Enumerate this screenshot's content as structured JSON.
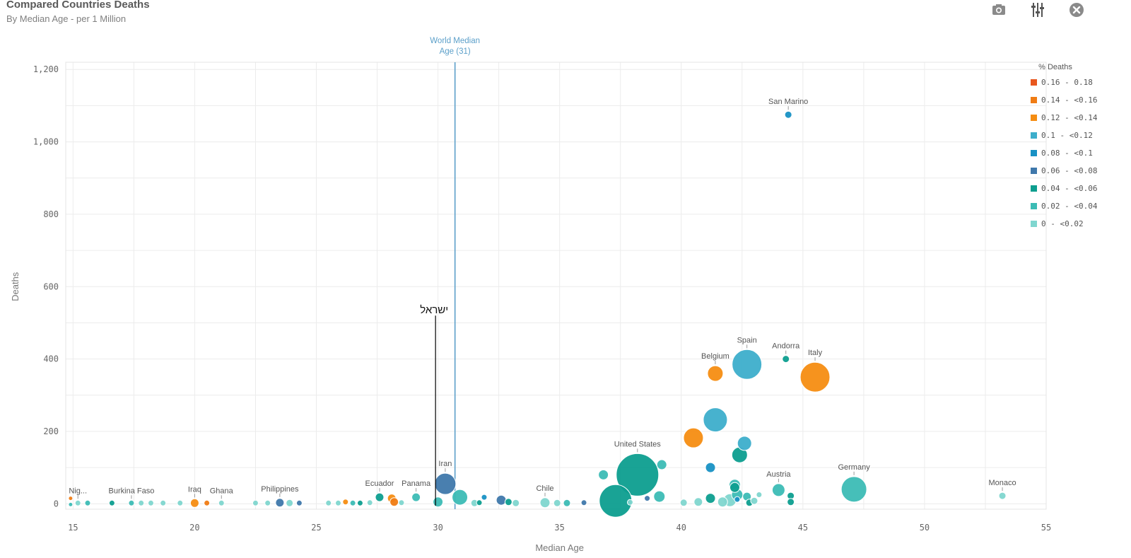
{
  "header": {
    "title": "Compared Countries Deaths",
    "subtitle": "By Median Age - per 1 Million"
  },
  "toolbar": {
    "icons": [
      "camera-icon",
      "sliders-icon",
      "close-icon"
    ]
  },
  "chart_data": {
    "type": "scatter",
    "xlabel": "Median Age",
    "ylabel": "Deaths",
    "xlim": [
      14.7,
      55
    ],
    "ylim": [
      -15,
      1220
    ],
    "xticks": [
      15,
      20,
      25,
      30,
      35,
      40,
      45,
      50,
      55
    ],
    "yticks": [
      {
        "v": 0,
        "label": "0"
      },
      {
        "v": 200,
        "label": "200"
      },
      {
        "v": 400,
        "label": "400"
      },
      {
        "v": 600,
        "label": "600"
      },
      {
        "v": 800,
        "label": "800"
      },
      {
        "v": 1000,
        "label": "1,000"
      },
      {
        "v": 1200,
        "label": "1,200"
      }
    ],
    "grid": true,
    "reference_line": {
      "x": 30.7,
      "label_line1": "World Median",
      "label_line2": "Age (31)",
      "color": "#5b9fc9"
    },
    "annotation": {
      "x": 29.9,
      "y": 520,
      "text": "ישראל"
    },
    "legend": {
      "title": "% Deaths",
      "position": "right",
      "items": [
        {
          "label": "0.16 - 0.18",
          "color": "#e8571e"
        },
        {
          "label": "0.14 - <0.16",
          "color": "#f07c14"
        },
        {
          "label": "0.12 - <0.14",
          "color": "#f58d12"
        },
        {
          "label": "0.1 - <0.12",
          "color": "#3daecb"
        },
        {
          "label": "0.08 - <0.1",
          "color": "#1891c4"
        },
        {
          "label": "0.06 - <0.08",
          "color": "#3f78ab"
        },
        {
          "label": "0.04 - <0.06",
          "color": "#0d9e8f"
        },
        {
          "label": "0.02 - <0.04",
          "color": "#3cbcb5"
        },
        {
          "label": "0 - <0.02",
          "color": "#7fd6cf"
        }
      ]
    },
    "points": [
      {
        "x": 44.4,
        "y": 1075,
        "r": 5,
        "c": 4,
        "label": "San Marino"
      },
      {
        "x": 42.7,
        "y": 385,
        "r": 21,
        "c": 3,
        "label": "Spain"
      },
      {
        "x": 44.3,
        "y": 400,
        "r": 5,
        "c": 6,
        "label": "Andorra"
      },
      {
        "x": 45.5,
        "y": 350,
        "r": 21,
        "c": 2,
        "label": "Italy"
      },
      {
        "x": 41.4,
        "y": 360,
        "r": 11,
        "c": 2,
        "label": "Belgium"
      },
      {
        "x": 41.4,
        "y": 232,
        "r": 17,
        "c": 3,
        "label": ""
      },
      {
        "x": 40.5,
        "y": 182,
        "r": 14,
        "c": 2,
        "label": ""
      },
      {
        "x": 42.6,
        "y": 167,
        "r": 10,
        "c": 3,
        "label": ""
      },
      {
        "x": 42.4,
        "y": 135,
        "r": 11,
        "c": 6,
        "label": ""
      },
      {
        "x": 41.2,
        "y": 100,
        "r": 7,
        "c": 4,
        "label": ""
      },
      {
        "x": 39.2,
        "y": 108,
        "r": 7,
        "c": 7,
        "label": ""
      },
      {
        "x": 38.2,
        "y": 80,
        "r": 30,
        "c": 6,
        "label": "United States"
      },
      {
        "x": 37.3,
        "y": 8,
        "r": 23,
        "c": 6,
        "label": ""
      },
      {
        "x": 36.8,
        "y": 80,
        "r": 7,
        "c": 7,
        "label": ""
      },
      {
        "x": 44.0,
        "y": 38,
        "r": 9,
        "c": 7,
        "label": "Austria"
      },
      {
        "x": 47.1,
        "y": 40,
        "r": 18,
        "c": 7,
        "label": "Germany"
      },
      {
        "x": 53.2,
        "y": 22,
        "r": 5,
        "c": 8,
        "label": "Monaco"
      },
      {
        "x": 42.2,
        "y": 52,
        "r": 8,
        "c": 7,
        "label": ""
      },
      {
        "x": 42.2,
        "y": 45,
        "r": 7,
        "c": 6,
        "label": ""
      },
      {
        "x": 42.3,
        "y": 25,
        "r": 8,
        "c": 7,
        "label": ""
      },
      {
        "x": 41.2,
        "y": 15,
        "r": 7,
        "c": 6,
        "label": ""
      },
      {
        "x": 39.1,
        "y": 20,
        "r": 8,
        "c": 7,
        "label": ""
      },
      {
        "x": 42.7,
        "y": 20,
        "r": 6,
        "c": 7,
        "label": ""
      },
      {
        "x": 43.2,
        "y": 25,
        "r": 4,
        "c": 8,
        "label": ""
      },
      {
        "x": 44.5,
        "y": 22,
        "r": 5,
        "c": 6,
        "label": ""
      },
      {
        "x": 44.5,
        "y": 5,
        "r": 5,
        "c": 6,
        "label": ""
      },
      {
        "x": 42.0,
        "y": 10,
        "r": 9,
        "c": 8,
        "label": ""
      },
      {
        "x": 41.7,
        "y": 5,
        "r": 7,
        "c": 8,
        "label": ""
      },
      {
        "x": 42.3,
        "y": 12,
        "r": 4,
        "c": 4,
        "label": ""
      },
      {
        "x": 42.8,
        "y": 3,
        "r": 5,
        "c": 6,
        "label": ""
      },
      {
        "x": 43.0,
        "y": 8,
        "r": 5,
        "c": 8,
        "label": ""
      },
      {
        "x": 40.7,
        "y": 5,
        "r": 6,
        "c": 8,
        "label": ""
      },
      {
        "x": 40.1,
        "y": 3,
        "r": 5,
        "c": 8,
        "label": ""
      },
      {
        "x": 38.6,
        "y": 15,
        "r": 4,
        "c": 5,
        "label": ""
      },
      {
        "x": 37.9,
        "y": 4,
        "r": 4,
        "c": 8,
        "label": ""
      },
      {
        "x": 30.3,
        "y": 55,
        "r": 15,
        "c": 5,
        "label": "Iran"
      },
      {
        "x": 30.9,
        "y": 18,
        "r": 11,
        "c": 7,
        "label": ""
      },
      {
        "x": 30.0,
        "y": 5,
        "r": 7,
        "c": 7,
        "label": ""
      },
      {
        "x": 31.9,
        "y": 18,
        "r": 4,
        "c": 4,
        "label": ""
      },
      {
        "x": 32.6,
        "y": 10,
        "r": 7,
        "c": 5,
        "label": ""
      },
      {
        "x": 32.9,
        "y": 5,
        "r": 5,
        "c": 6,
        "label": ""
      },
      {
        "x": 33.2,
        "y": 2,
        "r": 5,
        "c": 8,
        "label": ""
      },
      {
        "x": 31.5,
        "y": 2,
        "r": 5,
        "c": 8,
        "label": ""
      },
      {
        "x": 31.7,
        "y": 3,
        "r": 4,
        "c": 6,
        "label": ""
      },
      {
        "x": 36.0,
        "y": 3,
        "r": 4,
        "c": 5,
        "label": ""
      },
      {
        "x": 34.4,
        "y": 3,
        "r": 7,
        "c": 8,
        "label": "Chile"
      },
      {
        "x": 34.9,
        "y": 2,
        "r": 5,
        "c": 8,
        "label": ""
      },
      {
        "x": 35.3,
        "y": 2,
        "r": 5,
        "c": 7,
        "label": ""
      },
      {
        "x": 27.6,
        "y": 18,
        "r": 6,
        "c": 6,
        "label": "Ecuador"
      },
      {
        "x": 28.1,
        "y": 15,
        "r": 6,
        "c": 2,
        "label": ""
      },
      {
        "x": 28.2,
        "y": 5,
        "r": 6,
        "c": 1,
        "label": ""
      },
      {
        "x": 29.1,
        "y": 18,
        "r": 6,
        "c": 7,
        "label": "Panama"
      },
      {
        "x": 28.5,
        "y": 3,
        "r": 4,
        "c": 8,
        "label": ""
      },
      {
        "x": 27.2,
        "y": 3,
        "r": 4,
        "c": 8,
        "label": ""
      },
      {
        "x": 26.2,
        "y": 5,
        "r": 4,
        "c": 2,
        "label": ""
      },
      {
        "x": 26.8,
        "y": 2,
        "r": 4,
        "c": 6,
        "label": ""
      },
      {
        "x": 26.5,
        "y": 2,
        "r": 4,
        "c": 7,
        "label": ""
      },
      {
        "x": 25.9,
        "y": 2,
        "r": 4,
        "c": 8,
        "label": ""
      },
      {
        "x": 25.5,
        "y": 2,
        "r": 4,
        "c": 8,
        "label": ""
      },
      {
        "x": 23.5,
        "y": 3,
        "r": 6,
        "c": 5,
        "label": "Philippines"
      },
      {
        "x": 23.9,
        "y": 2,
        "r": 5,
        "c": 8,
        "label": ""
      },
      {
        "x": 24.3,
        "y": 2,
        "r": 4,
        "c": 5,
        "label": ""
      },
      {
        "x": 23.0,
        "y": 2,
        "r": 4,
        "c": 8,
        "label": ""
      },
      {
        "x": 22.5,
        "y": 2,
        "r": 4,
        "c": 8,
        "label": ""
      },
      {
        "x": 20.0,
        "y": 2,
        "r": 6,
        "c": 2,
        "label": "Iraq"
      },
      {
        "x": 20.5,
        "y": 2,
        "r": 4,
        "c": 1,
        "label": ""
      },
      {
        "x": 21.1,
        "y": 2,
        "r": 4,
        "c": 8,
        "label": "Ghana"
      },
      {
        "x": 19.4,
        "y": 2,
        "r": 4,
        "c": 8,
        "label": ""
      },
      {
        "x": 17.4,
        "y": 2,
        "r": 4,
        "c": 7,
        "label": "Burkina Faso"
      },
      {
        "x": 16.6,
        "y": 2,
        "r": 4,
        "c": 6,
        "label": ""
      },
      {
        "x": 17.8,
        "y": 2,
        "r": 4,
        "c": 8,
        "label": ""
      },
      {
        "x": 18.2,
        "y": 2,
        "r": 4,
        "c": 8,
        "label": ""
      },
      {
        "x": 18.7,
        "y": 2,
        "r": 4,
        "c": 8,
        "label": ""
      },
      {
        "x": 15.2,
        "y": 2,
        "r": 4,
        "c": 8,
        "label": "Nig..."
      },
      {
        "x": 15.6,
        "y": 2,
        "r": 4,
        "c": 7,
        "label": ""
      },
      {
        "x": 14.9,
        "y": 15,
        "r": 3,
        "c": 1,
        "label": ""
      },
      {
        "x": 14.9,
        "y": -2,
        "r": 3,
        "c": 7,
        "label": ""
      }
    ]
  }
}
